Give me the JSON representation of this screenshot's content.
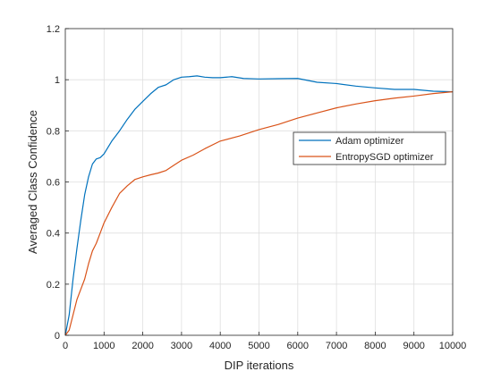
{
  "chart_data": {
    "type": "line",
    "title": "",
    "xlabel": "DIP iterations",
    "ylabel": "Averaged Class Confidence",
    "xlim": [
      0,
      10000
    ],
    "ylim": [
      0,
      1.2
    ],
    "xticks": [
      0,
      1000,
      2000,
      3000,
      4000,
      5000,
      6000,
      7000,
      8000,
      9000,
      10000
    ],
    "yticks": [
      0,
      0.2,
      0.4,
      0.6,
      0.8,
      1,
      1.2
    ],
    "xtick_labels": [
      "0",
      "1000",
      "2000",
      "3000",
      "4000",
      "5000",
      "6000",
      "7000",
      "8000",
      "9000",
      "10000"
    ],
    "ytick_labels": [
      "0",
      "0.2",
      "0.4",
      "0.6",
      "0.8",
      "1",
      "1.2"
    ],
    "grid": true,
    "legend_position": "right",
    "series": [
      {
        "name": "Adam optimizer",
        "color": "#0072BD",
        "x": [
          0,
          100,
          200,
          300,
          400,
          500,
          600,
          700,
          800,
          900,
          1000,
          1200,
          1400,
          1600,
          1800,
          2000,
          2200,
          2400,
          2600,
          2800,
          3000,
          3200,
          3400,
          3600,
          3800,
          4000,
          4300,
          4600,
          5000,
          5500,
          6000,
          6500,
          7000,
          7500,
          8000,
          8500,
          9000,
          9500,
          10000
        ],
        "y": [
          0,
          0.08,
          0.22,
          0.34,
          0.45,
          0.55,
          0.62,
          0.67,
          0.69,
          0.695,
          0.71,
          0.76,
          0.8,
          0.845,
          0.885,
          0.915,
          0.945,
          0.97,
          0.98,
          1.0,
          1.01,
          1.012,
          1.015,
          1.01,
          1.008,
          1.008,
          1.012,
          1.005,
          1.003,
          1.004,
          1.005,
          0.99,
          0.985,
          0.975,
          0.968,
          0.962,
          0.962,
          0.955,
          0.953
        ]
      },
      {
        "name": "EntropySGD optimizer",
        "color": "#D95319",
        "x": [
          0,
          100,
          200,
          300,
          400,
          500,
          600,
          700,
          800,
          900,
          1000,
          1200,
          1400,
          1600,
          1800,
          2000,
          2200,
          2400,
          2600,
          2800,
          3000,
          3300,
          3600,
          4000,
          4500,
          5000,
          5500,
          6000,
          6500,
          7000,
          7500,
          8000,
          8500,
          9000,
          9500,
          10000
        ],
        "y": [
          0,
          0.02,
          0.08,
          0.14,
          0.18,
          0.22,
          0.28,
          0.33,
          0.36,
          0.4,
          0.44,
          0.5,
          0.555,
          0.585,
          0.61,
          0.62,
          0.628,
          0.635,
          0.645,
          0.665,
          0.685,
          0.705,
          0.73,
          0.76,
          0.78,
          0.805,
          0.825,
          0.85,
          0.87,
          0.89,
          0.905,
          0.918,
          0.928,
          0.936,
          0.946,
          0.953
        ]
      }
    ]
  }
}
